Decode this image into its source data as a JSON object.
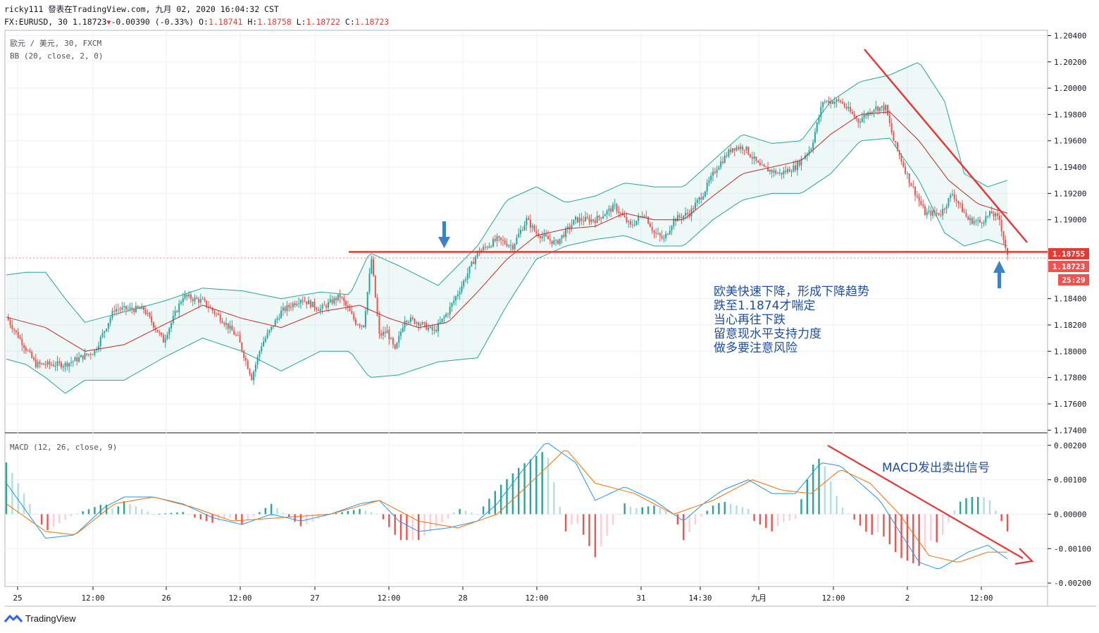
{
  "header": {
    "line1": "ricky111 發表在TradingView.com, 九月 02, 2020 16:04:32 CST",
    "symbol": "FX:EURUSD, 30",
    "last": "1.18723",
    "change": "-0.00390 (-0.33%)",
    "o_label": "O:",
    "o": "1.18741",
    "h_label": "H:",
    "h": "1.18758",
    "l_label": "L:",
    "l": "1.18722",
    "c_label": "C:",
    "c": "1.18723"
  },
  "legend": {
    "main": "歐元 / 美元, 30, FXCM",
    "bb": "BB (20, close, 2, 0)",
    "macd": "MACD (12, 26, close, 9)"
  },
  "annotations": {
    "lines": [
      "欧美快速下降，形成下降趋势",
      "跌至1.1874才喘定",
      "当心再往下跌",
      "留意现水平支持力度",
      "做多要注意风险"
    ],
    "macd_note": "MACD发出卖出信号"
  },
  "price_labels": {
    "line": "1.18755",
    "last": "1.18723",
    "countdown": "25:29"
  },
  "brand": "TradingView",
  "chart_data": {
    "type": "candlestick",
    "colors": {
      "up": "#26a69a",
      "down": "#ef5350",
      "bb": "#26a69a",
      "basis": "#c62828",
      "macd": "#2196f3",
      "signal": "#ff6d00",
      "annotation": "#e53935",
      "arrow": "#3f82c4"
    },
    "price_axis": {
      "ticks": [
        "1.20400",
        "1.20200",
        "1.20000",
        "1.19800",
        "1.19600",
        "1.19400",
        "1.19200",
        "1.19000",
        "1.18400",
        "1.18200",
        "1.18000",
        "1.17800",
        "1.17600",
        "1.17400"
      ],
      "range": [
        1.1738,
        1.2044
      ]
    },
    "macd_axis": {
      "ticks": [
        "0.00200",
        "0.00100",
        "0.00000",
        "-0.00100",
        "-0.00200"
      ],
      "range": [
        -0.0021,
        0.0022
      ]
    },
    "x_ticks": [
      "25",
      "12:00",
      "26",
      "12:00",
      "27",
      "12:00",
      "28",
      "12:00",
      "31",
      "14:30",
      "九月",
      "12:00",
      "2",
      "12:00"
    ],
    "price_path": [
      [
        0,
        1.1826
      ],
      [
        15,
        1.179
      ],
      [
        30,
        1.179
      ],
      [
        45,
        1.18
      ],
      [
        55,
        1.1832
      ],
      [
        70,
        1.1832
      ],
      [
        80,
        1.1808
      ],
      [
        90,
        1.1842
      ],
      [
        100,
        1.1838
      ],
      [
        110,
        1.1824
      ],
      [
        118,
        1.181
      ],
      [
        125,
        1.178
      ],
      [
        130,
        1.1805
      ],
      [
        140,
        1.183
      ],
      [
        150,
        1.184
      ],
      [
        160,
        1.1832
      ],
      [
        170,
        1.1842
      ],
      [
        178,
        1.1822
      ],
      [
        182,
        1.182
      ],
      [
        186,
        1.187
      ],
      [
        190,
        1.1812
      ],
      [
        194,
        1.1815
      ],
      [
        198,
        1.18
      ],
      [
        203,
        1.1825
      ],
      [
        210,
        1.1822
      ],
      [
        218,
        1.1815
      ],
      [
        225,
        1.183
      ],
      [
        232,
        1.185
      ],
      [
        240,
        1.1875
      ],
      [
        250,
        1.1885
      ],
      [
        258,
        1.188
      ],
      [
        265,
        1.19
      ],
      [
        270,
        1.189
      ],
      [
        280,
        1.1882
      ],
      [
        290,
        1.19
      ],
      [
        300,
        1.19
      ],
      [
        310,
        1.191
      ],
      [
        318,
        1.1895
      ],
      [
        325,
        1.1905
      ],
      [
        330,
        1.189
      ],
      [
        335,
        1.1885
      ],
      [
        340,
        1.19
      ],
      [
        348,
        1.1905
      ],
      [
        355,
        1.192
      ],
      [
        362,
        1.194
      ],
      [
        370,
        1.1955
      ],
      [
        376,
        1.1955
      ],
      [
        384,
        1.194
      ],
      [
        394,
        1.1935
      ],
      [
        402,
        1.194
      ],
      [
        410,
        1.1955
      ],
      [
        416,
        1.199
      ],
      [
        425,
        1.199
      ],
      [
        434,
        1.1975
      ],
      [
        442,
        1.1985
      ],
      [
        448,
        1.1985
      ],
      [
        452,
        1.196
      ],
      [
        460,
        1.193
      ],
      [
        468,
        1.1905
      ],
      [
        476,
        1.1905
      ],
      [
        482,
        1.192
      ],
      [
        486,
        1.191
      ],
      [
        490,
        1.19
      ],
      [
        496,
        1.1898
      ],
      [
        502,
        1.1905
      ],
      [
        506,
        1.19
      ],
      [
        510,
        1.1872
      ]
    ],
    "bb_basis": [
      [
        0,
        1.1826
      ],
      [
        20,
        1.1818
      ],
      [
        40,
        1.18
      ],
      [
        60,
        1.1805
      ],
      [
        80,
        1.182
      ],
      [
        100,
        1.1835
      ],
      [
        120,
        1.1825
      ],
      [
        140,
        1.1818
      ],
      [
        160,
        1.183
      ],
      [
        180,
        1.1835
      ],
      [
        195,
        1.1825
      ],
      [
        210,
        1.1818
      ],
      [
        225,
        1.1822
      ],
      [
        240,
        1.1845
      ],
      [
        255,
        1.187
      ],
      [
        270,
        1.1888
      ],
      [
        285,
        1.1893
      ],
      [
        300,
        1.1895
      ],
      [
        315,
        1.1905
      ],
      [
        330,
        1.19
      ],
      [
        345,
        1.19
      ],
      [
        360,
        1.1918
      ],
      [
        375,
        1.1935
      ],
      [
        390,
        1.194
      ],
      [
        405,
        1.1945
      ],
      [
        420,
        1.1965
      ],
      [
        435,
        1.198
      ],
      [
        450,
        1.1982
      ],
      [
        465,
        1.196
      ],
      [
        480,
        1.193
      ],
      [
        495,
        1.1912
      ],
      [
        510,
        1.1905
      ]
    ],
    "bb_upper": [
      [
        0,
        1.1858
      ],
      [
        10,
        1.186
      ],
      [
        20,
        1.186
      ],
      [
        30,
        1.184
      ],
      [
        40,
        1.1822
      ],
      [
        60,
        1.183
      ],
      [
        80,
        1.1838
      ],
      [
        100,
        1.1848
      ],
      [
        120,
        1.1846
      ],
      [
        140,
        1.184
      ],
      [
        160,
        1.1845
      ],
      [
        175,
        1.1843
      ],
      [
        185,
        1.1875
      ],
      [
        200,
        1.1865
      ],
      [
        220,
        1.185
      ],
      [
        240,
        1.188
      ],
      [
        255,
        1.1915
      ],
      [
        270,
        1.1925
      ],
      [
        285,
        1.1913
      ],
      [
        300,
        1.1918
      ],
      [
        315,
        1.1928
      ],
      [
        330,
        1.1925
      ],
      [
        345,
        1.1925
      ],
      [
        360,
        1.1945
      ],
      [
        375,
        1.1965
      ],
      [
        390,
        1.1958
      ],
      [
        405,
        1.196
      ],
      [
        420,
        1.199
      ],
      [
        435,
        1.2005
      ],
      [
        450,
        1.201
      ],
      [
        465,
        1.202
      ],
      [
        478,
        1.199
      ],
      [
        488,
        1.1935
      ],
      [
        500,
        1.1925
      ],
      [
        510,
        1.193
      ]
    ],
    "bb_lower": [
      [
        0,
        1.1794
      ],
      [
        10,
        1.179
      ],
      [
        20,
        1.178
      ],
      [
        30,
        1.1768
      ],
      [
        40,
        1.1778
      ],
      [
        60,
        1.1778
      ],
      [
        80,
        1.1795
      ],
      [
        100,
        1.181
      ],
      [
        120,
        1.18
      ],
      [
        140,
        1.1785
      ],
      [
        160,
        1.18
      ],
      [
        175,
        1.18
      ],
      [
        185,
        1.178
      ],
      [
        200,
        1.1782
      ],
      [
        220,
        1.1792
      ],
      [
        240,
        1.1795
      ],
      [
        255,
        1.1835
      ],
      [
        270,
        1.187
      ],
      [
        285,
        1.188
      ],
      [
        300,
        1.1885
      ],
      [
        315,
        1.1888
      ],
      [
        330,
        1.188
      ],
      [
        345,
        1.188
      ],
      [
        360,
        1.19
      ],
      [
        375,
        1.1915
      ],
      [
        390,
        1.192
      ],
      [
        405,
        1.192
      ],
      [
        420,
        1.1935
      ],
      [
        435,
        1.196
      ],
      [
        450,
        1.1962
      ],
      [
        465,
        1.193
      ],
      [
        478,
        1.189
      ],
      [
        488,
        1.188
      ],
      [
        500,
        1.1885
      ],
      [
        510,
        1.188
      ]
    ],
    "macd": [
      [
        0,
        0.0009
      ],
      [
        10,
        0.0001
      ],
      [
        20,
        -0.0007
      ],
      [
        35,
        -0.0006
      ],
      [
        50,
        0.0002
      ],
      [
        60,
        0.0005
      ],
      [
        75,
        0.0005
      ],
      [
        90,
        0.0003
      ],
      [
        105,
        -0.0001
      ],
      [
        120,
        -0.0003
      ],
      [
        135,
        0.0
      ],
      [
        150,
        -0.0002
      ],
      [
        165,
        0.0
      ],
      [
        180,
        0.0003
      ],
      [
        190,
        0.0004
      ],
      [
        200,
        -0.0002
      ],
      [
        210,
        -0.0005
      ],
      [
        225,
        -0.0004
      ],
      [
        240,
        -0.0002
      ],
      [
        250,
        0.0003
      ],
      [
        262,
        0.0012
      ],
      [
        275,
        0.0021
      ],
      [
        290,
        0.0015
      ],
      [
        300,
        0.0004
      ],
      [
        315,
        0.0008
      ],
      [
        330,
        0.0004
      ],
      [
        345,
        -0.0002
      ],
      [
        355,
        0.0003
      ],
      [
        365,
        0.0007
      ],
      [
        378,
        0.001
      ],
      [
        390,
        0.0006
      ],
      [
        402,
        0.0006
      ],
      [
        415,
        0.0015
      ],
      [
        425,
        0.0014
      ],
      [
        435,
        0.0009
      ],
      [
        445,
        0.0004
      ],
      [
        455,
        -0.0005
      ],
      [
        465,
        -0.0014
      ],
      [
        475,
        -0.0016
      ],
      [
        490,
        -0.0011
      ],
      [
        500,
        -0.0009
      ],
      [
        510,
        -0.0013
      ]
    ],
    "signal": [
      [
        0,
        0.0003
      ],
      [
        20,
        -0.0005
      ],
      [
        35,
        -0.0006
      ],
      [
        55,
        0.0003
      ],
      [
        75,
        0.0005
      ],
      [
        95,
        0.0002
      ],
      [
        115,
        -0.0002
      ],
      [
        140,
        -0.0001
      ],
      [
        165,
        0.0
      ],
      [
        190,
        0.0004
      ],
      [
        210,
        -0.0002
      ],
      [
        230,
        -0.0004
      ],
      [
        250,
        0.0
      ],
      [
        265,
        0.0008
      ],
      [
        285,
        0.0019
      ],
      [
        300,
        0.0009
      ],
      [
        320,
        0.0006
      ],
      [
        340,
        0.0
      ],
      [
        360,
        0.0004
      ],
      [
        380,
        0.001
      ],
      [
        395,
        0.0007
      ],
      [
        410,
        0.0006
      ],
      [
        425,
        0.0013
      ],
      [
        440,
        0.0009
      ],
      [
        455,
        0.0
      ],
      [
        470,
        -0.0012
      ],
      [
        485,
        -0.0014
      ],
      [
        500,
        -0.0011
      ],
      [
        510,
        -0.0011
      ]
    ],
    "resistance_level": 1.18755
  }
}
